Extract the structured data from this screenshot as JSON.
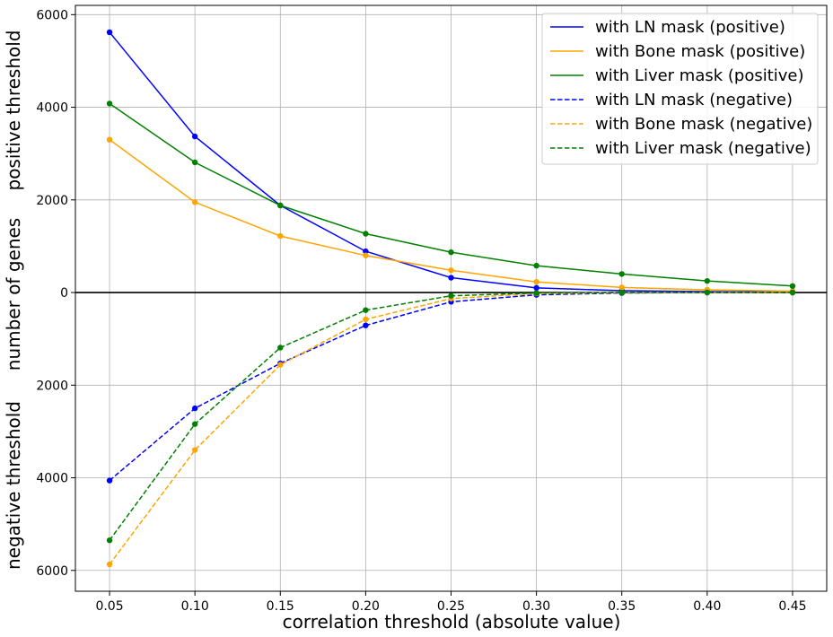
{
  "chart_data": {
    "type": "line",
    "x": [
      0.05,
      0.1,
      0.15,
      0.2,
      0.25,
      0.3,
      0.35,
      0.4,
      0.45
    ],
    "x_tick_labels": [
      "0.05",
      "0.10",
      "0.15",
      "0.20",
      "0.25",
      "0.30",
      "0.35",
      "0.40",
      "0.45"
    ],
    "xlim": [
      0.03,
      0.47
    ],
    "xlabel": "correlation threshold (absolute value)",
    "ylabel": {
      "top": "positive threshold",
      "middle": "number of genes",
      "bottom": "negative threshold"
    },
    "ylim": [
      -6450,
      6200
    ],
    "y_ticks": [
      6000,
      4000,
      2000,
      0,
      -2000,
      -4000,
      -6000
    ],
    "y_tick_labels": [
      "6000",
      "4000",
      "2000",
      "0",
      "2000",
      "4000",
      "6000"
    ],
    "grid": true,
    "zero_line": true,
    "legend_position": "top-right",
    "series": [
      {
        "name": "with LN mask (positive)",
        "color": "#0000ff",
        "dash": "solid",
        "values": [
          5620,
          3370,
          1880,
          890,
          320,
          100,
          40,
          20,
          10
        ]
      },
      {
        "name": "with Bone mask (positive)",
        "color": "#ffa500",
        "dash": "solid",
        "values": [
          3300,
          1950,
          1220,
          800,
          480,
          230,
          110,
          60,
          30
        ]
      },
      {
        "name": "with Liver mask (positive)",
        "color": "#008000",
        "dash": "solid",
        "values": [
          4080,
          2810,
          1880,
          1270,
          870,
          580,
          400,
          250,
          140
        ]
      },
      {
        "name": "with LN mask (negative)",
        "color": "#0000ff",
        "dash": "dashed",
        "values": [
          -4060,
          -2500,
          -1530,
          -710,
          -200,
          -50,
          -10,
          0,
          0
        ]
      },
      {
        "name": "with Bone mask (negative)",
        "color": "#ffa500",
        "dash": "dashed",
        "values": [
          -5870,
          -3400,
          -1560,
          -580,
          -130,
          -20,
          0,
          0,
          0
        ]
      },
      {
        "name": "with Liver mask (negative)",
        "color": "#008000",
        "dash": "dashed",
        "values": [
          -5350,
          -2840,
          -1190,
          -380,
          -70,
          -10,
          0,
          0,
          0
        ]
      }
    ]
  }
}
